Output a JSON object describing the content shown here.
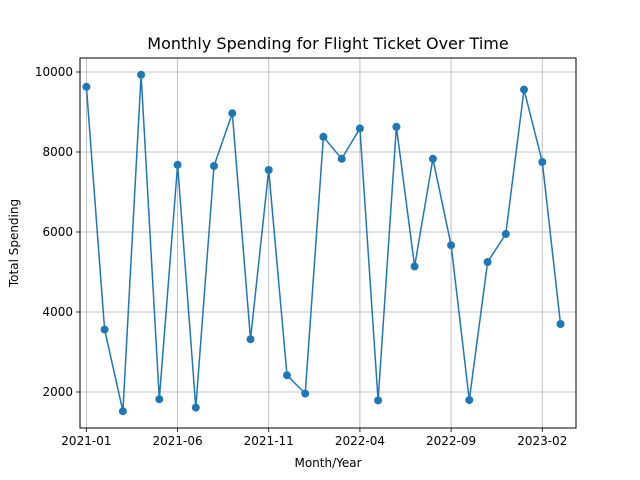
{
  "chart_data": {
    "type": "line",
    "title": "Monthly Spending for Flight Ticket Over Time",
    "xlabel": "Month/Year",
    "ylabel": "Total Spending",
    "color": "#1f77b4",
    "grid": true,
    "marker": "circle",
    "x_ticks": [
      "2021-01",
      "2021-06",
      "2021-11",
      "2022-04",
      "2022-09",
      "2023-02"
    ],
    "y_ticks": [
      2000,
      4000,
      6000,
      8000,
      10000
    ],
    "xlim": [
      "2020-12",
      "2023-04"
    ],
    "ylim": [
      1100,
      10350
    ],
    "x": [
      "2021-01",
      "2021-02",
      "2021-03",
      "2021-04",
      "2021-05",
      "2021-06",
      "2021-07",
      "2021-08",
      "2021-09",
      "2021-10",
      "2021-11",
      "2021-12",
      "2022-01",
      "2022-02",
      "2022-03",
      "2022-04",
      "2022-05",
      "2022-06",
      "2022-07",
      "2022-08",
      "2022-09",
      "2022-10",
      "2022-11",
      "2022-12",
      "2023-01",
      "2023-02",
      "2023-03"
    ],
    "values": [
      9630,
      3560,
      1520,
      9930,
      1820,
      7680,
      1610,
      7650,
      8970,
      3320,
      7550,
      2420,
      1960,
      8380,
      7830,
      8590,
      1790,
      8630,
      5140,
      7830,
      5670,
      1800,
      5250,
      5950,
      9560,
      7750,
      3700
    ]
  }
}
